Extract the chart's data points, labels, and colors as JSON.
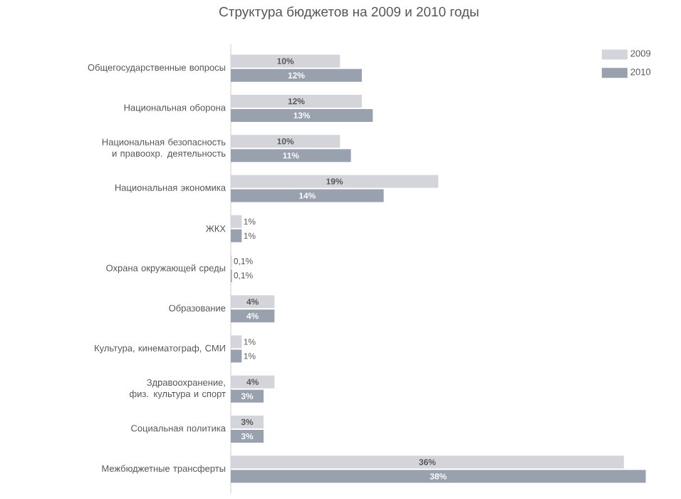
{
  "chart_data": {
    "type": "bar",
    "orientation": "horizontal",
    "title": "Структура бюджетов на 2009 и 2010 годы",
    "categories": [
      "Общегосударственные вопросы",
      "Национальная оборона",
      "Национальная безопасность и правоохр. деятельность",
      "Национальная экономика",
      "ЖКХ",
      "Охрана окружающей среды",
      "Образование",
      "Культура, кинематограф, СМИ",
      "Здравоохранение, физ. культура и спорт",
      "Социальная политика",
      "Межбюджетные трансферты"
    ],
    "series": [
      {
        "name": "2009",
        "color": "#d3d5da",
        "values": [
          10,
          12,
          10,
          19,
          1,
          0.1,
          4,
          1,
          4,
          3,
          36
        ],
        "value_labels": [
          "10%",
          "12%",
          "10%",
          "19%",
          "1%",
          "0,1%",
          "4%",
          "1%",
          "4%",
          "3%",
          "36%"
        ]
      },
      {
        "name": "2010",
        "color": "#9aa1ae",
        "values": [
          12,
          13,
          11,
          14,
          1,
          0.1,
          4,
          1,
          3,
          3,
          38
        ],
        "value_labels": [
          "12%",
          "13%",
          "11%",
          "14%",
          "1%",
          "0,1%",
          "4%",
          "1%",
          "3%",
          "3%",
          "38%"
        ]
      }
    ],
    "legend": "top right"
  }
}
